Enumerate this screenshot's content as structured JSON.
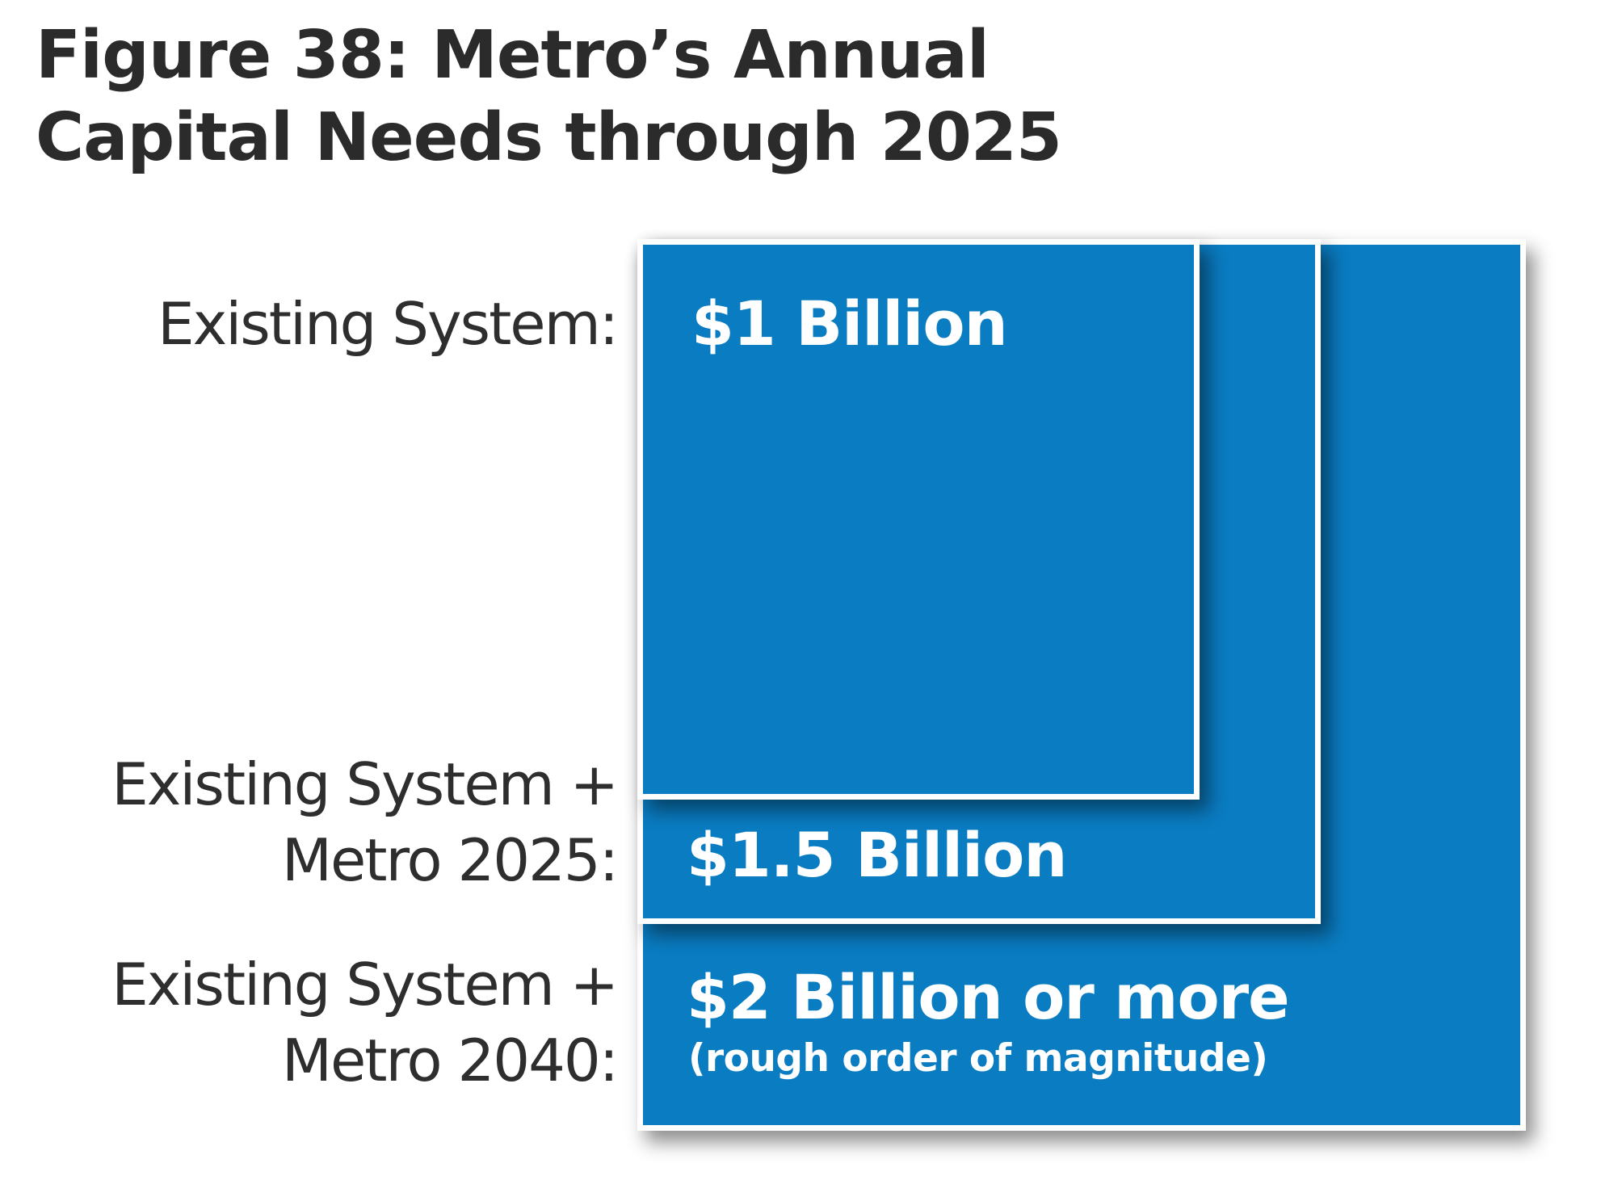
{
  "title": {
    "line1": "Figure 38: Metro’s Annual",
    "line2": "Capital Needs through 2025"
  },
  "levels": [
    {
      "label_lines": [
        "Existing System:"
      ],
      "value": "$1 Billion",
      "amount_billion": 1
    },
    {
      "label_lines": [
        "Existing System +",
        "Metro 2025:"
      ],
      "value": "$1.5 Billion",
      "amount_billion": 1.5
    },
    {
      "label_lines": [
        "Existing System +",
        "Metro 2040:"
      ],
      "value": "$2 Billion or more",
      "note": "(rough order of magnitude)",
      "amount_billion": 2
    }
  ],
  "colors": {
    "box_fill": "#0a7cc2",
    "box_border": "#ffffff",
    "text_dark": "#2e2e2e",
    "value_text": "#ffffff"
  }
}
